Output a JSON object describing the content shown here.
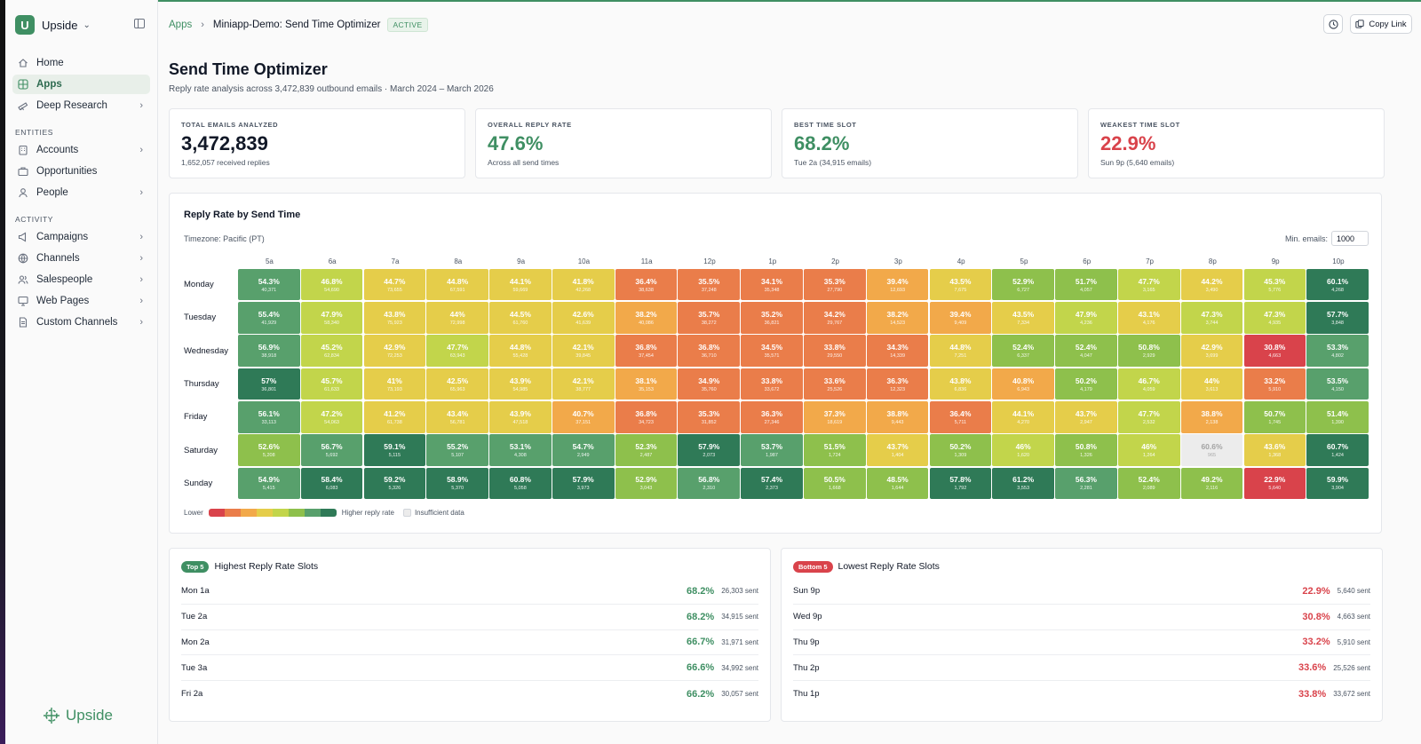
{
  "workspace": {
    "initial": "U",
    "name": "Upside"
  },
  "nav": {
    "main": [
      {
        "label": "Home",
        "icon": "home-icon",
        "active": false,
        "chevron": false
      },
      {
        "label": "Apps",
        "icon": "apps-icon",
        "active": true,
        "chevron": false
      },
      {
        "label": "Deep Research",
        "icon": "telescope-icon",
        "active": false,
        "chevron": true
      }
    ],
    "entities_label": "ENTITIES",
    "entities": [
      {
        "label": "Accounts",
        "icon": "building-icon",
        "chevron": true
      },
      {
        "label": "Opportunities",
        "icon": "briefcase-icon",
        "chevron": false
      },
      {
        "label": "People",
        "icon": "person-icon",
        "chevron": true
      }
    ],
    "activity_label": "ACTIVITY",
    "activity": [
      {
        "label": "Campaigns",
        "icon": "megaphone-icon",
        "chevron": true
      },
      {
        "label": "Channels",
        "icon": "globe-icon",
        "chevron": true
      },
      {
        "label": "Salespeople",
        "icon": "users-icon",
        "chevron": true
      },
      {
        "label": "Web Pages",
        "icon": "monitor-icon",
        "chevron": true
      },
      {
        "label": "Custom Channels",
        "icon": "document-icon",
        "chevron": true
      }
    ],
    "brand": "Upside"
  },
  "breadcrumb": {
    "root": "Apps",
    "current": "Miniapp-Demo: Send Time Optimizer",
    "status": "ACTIVE"
  },
  "actions": {
    "copy_link": "Copy Link"
  },
  "page": {
    "title": "Send Time Optimizer",
    "subtitle": "Reply rate analysis across 3,472,839 outbound emails · March 2024 – March 2026"
  },
  "stats": [
    {
      "label": "TOTAL EMAILS ANALYZED",
      "value": "3,472,839",
      "sub": "1,652,057 received replies",
      "tone": ""
    },
    {
      "label": "OVERALL REPLY RATE",
      "value": "47.6%",
      "sub": "Across all send times",
      "tone": "green"
    },
    {
      "label": "BEST TIME SLOT",
      "value": "68.2%",
      "sub": "Tue 2a (34,915 emails)",
      "tone": "green"
    },
    {
      "label": "WEAKEST TIME SLOT",
      "value": "22.9%",
      "sub": "Sun 9p (5,640 emails)",
      "tone": "red"
    }
  ],
  "heatmap": {
    "title": "Reply Rate by Send Time",
    "timezone": "Timezone: Pacific (PT)",
    "min_emails_label": "Min. emails:",
    "min_emails_value": "1000",
    "legend_low": "Lower",
    "legend_high": "Higher reply rate",
    "legend_insufficient": "Insufficient data",
    "legend_colors": [
      "#d9434b",
      "#ea7d4a",
      "#f2a94a",
      "#e5cd4a",
      "#c2d54b",
      "#8ec04c",
      "#58a06c",
      "#2f7a57"
    ]
  },
  "chart_data": {
    "type": "heatmap",
    "title": "Reply Rate by Send Time",
    "x": [
      "5a",
      "6a",
      "7a",
      "8a",
      "9a",
      "10a",
      "11a",
      "12p",
      "1p",
      "2p",
      "3p",
      "4p",
      "5p",
      "6p",
      "7p",
      "8p",
      "9p",
      "10p"
    ],
    "y": [
      "Monday",
      "Tuesday",
      "Wednesday",
      "Thursday",
      "Friday",
      "Saturday",
      "Sunday"
    ],
    "values": [
      [
        54.3,
        46.8,
        44.7,
        44.8,
        44.1,
        41.8,
        36.4,
        35.5,
        34.1,
        35.3,
        39.4,
        43.5,
        52.9,
        51.7,
        47.7,
        44.2,
        45.3,
        60.1
      ],
      [
        55.4,
        47.9,
        43.8,
        44,
        44.5,
        42.6,
        38.2,
        35.7,
        35.2,
        34.2,
        38.2,
        39.4,
        43.5,
        47.9,
        43.1,
        47.3,
        47.3,
        57.7
      ],
      [
        56.9,
        45.2,
        42.9,
        47.7,
        44.8,
        42.1,
        36.8,
        36.8,
        34.5,
        33.8,
        34.3,
        44.8,
        52.4,
        52.4,
        50.8,
        42.9,
        30.8,
        53.3
      ],
      [
        57,
        45.7,
        41,
        42.5,
        43.9,
        42.1,
        38.1,
        34.9,
        33.8,
        33.6,
        36.3,
        43.8,
        40.8,
        50.2,
        46.7,
        44,
        33.2,
        53.5
      ],
      [
        56.1,
        47.2,
        41.2,
        43.4,
        43.9,
        40.7,
        36.8,
        35.3,
        36.3,
        37.3,
        38.8,
        36.4,
        44.1,
        43.7,
        47.7,
        38.8,
        50.7,
        51.4
      ],
      [
        52.6,
        56.7,
        59.1,
        55.2,
        53.1,
        54.7,
        52.3,
        57.9,
        53.7,
        51.5,
        43.7,
        50.2,
        46,
        50.8,
        46,
        60.6,
        43.6,
        60.7
      ],
      [
        54.9,
        58.4,
        59.2,
        58.9,
        60.8,
        57.9,
        52.9,
        56.8,
        57.4,
        50.5,
        48.5,
        57.8,
        61.2,
        56.3,
        52.4,
        49.2,
        22.9,
        59.9
      ]
    ],
    "labels": [
      [
        "54.3%",
        "46.8%",
        "44.7%",
        "44.8%",
        "44.1%",
        "41.8%",
        "36.4%",
        "35.5%",
        "34.1%",
        "35.3%",
        "39.4%",
        "43.5%",
        "52.9%",
        "51.7%",
        "47.7%",
        "44.2%",
        "45.3%",
        "60.1%"
      ],
      [
        "55.4%",
        "47.9%",
        "43.8%",
        "44%",
        "44.5%",
        "42.6%",
        "38.2%",
        "35.7%",
        "35.2%",
        "34.2%",
        "38.2%",
        "39.4%",
        "43.5%",
        "47.9%",
        "43.1%",
        "47.3%",
        "47.3%",
        "57.7%"
      ],
      [
        "56.9%",
        "45.2%",
        "42.9%",
        "47.7%",
        "44.8%",
        "42.1%",
        "36.8%",
        "36.8%",
        "34.5%",
        "33.8%",
        "34.3%",
        "44.8%",
        "52.4%",
        "52.4%",
        "50.8%",
        "42.9%",
        "30.8%",
        "53.3%"
      ],
      [
        "57%",
        "45.7%",
        "41%",
        "42.5%",
        "43.9%",
        "42.1%",
        "38.1%",
        "34.9%",
        "33.8%",
        "33.6%",
        "36.3%",
        "43.8%",
        "40.8%",
        "50.2%",
        "46.7%",
        "44%",
        "33.2%",
        "53.5%"
      ],
      [
        "56.1%",
        "47.2%",
        "41.2%",
        "43.4%",
        "43.9%",
        "40.7%",
        "36.8%",
        "35.3%",
        "36.3%",
        "37.3%",
        "38.8%",
        "36.4%",
        "44.1%",
        "43.7%",
        "47.7%",
        "38.8%",
        "50.7%",
        "51.4%"
      ],
      [
        "52.6%",
        "56.7%",
        "59.1%",
        "55.2%",
        "53.1%",
        "54.7%",
        "52.3%",
        "57.9%",
        "53.7%",
        "51.5%",
        "43.7%",
        "50.2%",
        "46%",
        "50.8%",
        "46%",
        "60.6%",
        "43.6%",
        "60.7%"
      ],
      [
        "54.9%",
        "58.4%",
        "59.2%",
        "58.9%",
        "60.8%",
        "57.9%",
        "52.9%",
        "56.8%",
        "57.4%",
        "50.5%",
        "48.5%",
        "57.8%",
        "61.2%",
        "56.3%",
        "52.4%",
        "49.2%",
        "22.9%",
        "59.9%"
      ]
    ],
    "counts": [
      [
        "40,371",
        "54,690",
        "73,655",
        "67,591",
        "59,669",
        "42,268",
        "38,638",
        "37,248",
        "35,348",
        "27,790",
        "12,693",
        "7,675",
        "6,727",
        "4,057",
        "3,165",
        "3,490",
        "5,776",
        "4,268"
      ],
      [
        "41,929",
        "58,340",
        "75,923",
        "72,998",
        "61,760",
        "41,639",
        "40,086",
        "38,272",
        "36,821",
        "29,767",
        "14,523",
        "9,409",
        "7,334",
        "4,236",
        "4,176",
        "3,744",
        "4,935",
        "3,848"
      ],
      [
        "38,918",
        "62,834",
        "72,253",
        "63,943",
        "55,428",
        "39,845",
        "37,454",
        "36,710",
        "35,571",
        "29,550",
        "14,339",
        "7,251",
        "6,337",
        "4,047",
        "2,929",
        "3,699",
        "4,663",
        "4,802"
      ],
      [
        "36,801",
        "61,633",
        "73,193",
        "65,963",
        "54,985",
        "38,777",
        "35,153",
        "35,760",
        "33,672",
        "25,526",
        "12,323",
        "6,836",
        "6,943",
        "4,179",
        "4,059",
        "3,613",
        "5,910",
        "4,150"
      ],
      [
        "33,113",
        "54,063",
        "61,738",
        "56,781",
        "47,518",
        "37,151",
        "34,723",
        "31,852",
        "27,346",
        "18,619",
        "9,443",
        "5,711",
        "4,270",
        "2,947",
        "2,532",
        "2,138",
        "1,745",
        "1,390"
      ],
      [
        "5,208",
        "5,692",
        "5,115",
        "5,107",
        "4,308",
        "2,949",
        "2,487",
        "2,073",
        "1,987",
        "1,724",
        "1,404",
        "1,309",
        "1,620",
        "1,326",
        "1,264",
        "965",
        "1,368",
        "1,424"
      ],
      [
        "5,415",
        "6,083",
        "5,326",
        "5,370",
        "5,058",
        "3,973",
        "3,043",
        "2,310",
        "2,373",
        "1,668",
        "1,644",
        "1,792",
        "3,553",
        "2,281",
        "2,089",
        "2,116",
        "5,640",
        "3,904"
      ]
    ],
    "insufficient": [
      [
        5,
        15
      ]
    ],
    "color_scale": "red (low) to green (high)"
  },
  "top_slots": {
    "badge": "Top 5",
    "title": "Highest Reply Rate Slots",
    "items": [
      {
        "slot": "Mon 1a",
        "rate": "68.2%",
        "sent": "26,303 sent"
      },
      {
        "slot": "Tue 2a",
        "rate": "68.2%",
        "sent": "34,915 sent"
      },
      {
        "slot": "Mon 2a",
        "rate": "66.7%",
        "sent": "31,971 sent"
      },
      {
        "slot": "Tue 3a",
        "rate": "66.6%",
        "sent": "34,992 sent"
      },
      {
        "slot": "Fri 2a",
        "rate": "66.2%",
        "sent": "30,057 sent"
      }
    ]
  },
  "bottom_slots": {
    "badge": "Bottom 5",
    "title": "Lowest Reply Rate Slots",
    "items": [
      {
        "slot": "Sun 9p",
        "rate": "22.9%",
        "sent": "5,640 sent"
      },
      {
        "slot": "Wed 9p",
        "rate": "30.8%",
        "sent": "4,663 sent"
      },
      {
        "slot": "Thu 9p",
        "rate": "33.2%",
        "sent": "5,910 sent"
      },
      {
        "slot": "Thu 2p",
        "rate": "33.6%",
        "sent": "25,526 sent"
      },
      {
        "slot": "Thu 1p",
        "rate": "33.8%",
        "sent": "33,672 sent"
      }
    ]
  }
}
